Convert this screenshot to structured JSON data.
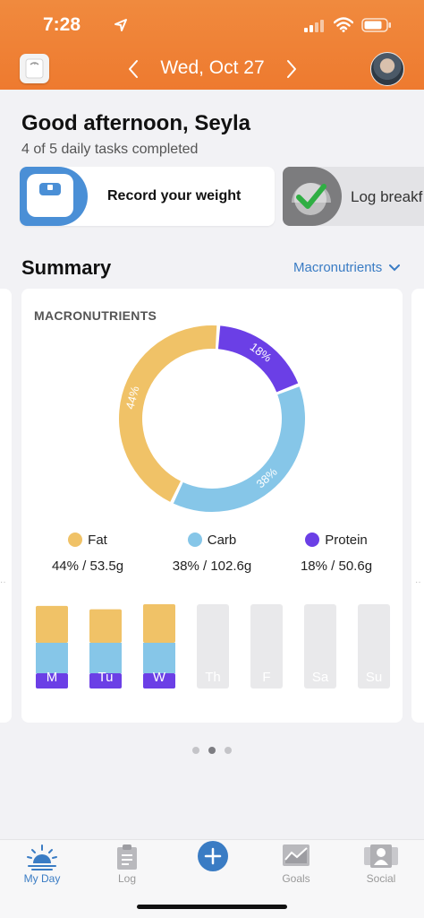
{
  "status_bar": {
    "time": "7:28"
  },
  "header": {
    "date": "Wed, Oct 27"
  },
  "greeting": {
    "title": "Good afternoon, Seyla",
    "subtitle": "4 of 5 daily tasks completed"
  },
  "tasks": [
    {
      "label": "Record your weight",
      "completed": false
    },
    {
      "label": "Log breakf",
      "completed": true
    }
  ],
  "summary": {
    "title": "Summary",
    "dropdown": "Macronutrients",
    "card_title": "MACRONUTRIENTS",
    "macros": [
      {
        "name": "Fat",
        "percent_label": "44%",
        "detail": "44% / 53.5g",
        "percent": 44,
        "color": "#f0c267"
      },
      {
        "name": "Carb",
        "percent_label": "38%",
        "detail": "38% / 102.6g",
        "percent": 38,
        "color": "#86c6e8"
      },
      {
        "name": "Protein",
        "percent_label": "18%",
        "detail": "18% / 50.6g",
        "percent": 18,
        "color": "#6b3fe6"
      }
    ],
    "week": [
      {
        "day": "M",
        "fat": 0.38,
        "carb": 0.4,
        "protein": 0.2,
        "total": 0.98
      },
      {
        "day": "Tu",
        "fat": 0.38,
        "carb": 0.4,
        "protein": 0.2,
        "total": 0.94
      },
      {
        "day": "W",
        "fat": 0.36,
        "carb": 0.4,
        "protein": 0.2,
        "total": 1.0
      },
      {
        "day": "Th",
        "empty": true
      },
      {
        "day": "F",
        "empty": true
      },
      {
        "day": "Sa",
        "empty": true
      },
      {
        "day": "Su",
        "empty": true
      }
    ],
    "pages": 3,
    "active_page": 1
  },
  "tab_bar": {
    "tabs": [
      {
        "label": "My Day",
        "active": true
      },
      {
        "label": "Log",
        "active": false
      },
      {
        "label": "Goals",
        "active": false
      },
      {
        "label": "Social",
        "active": false
      }
    ]
  }
}
